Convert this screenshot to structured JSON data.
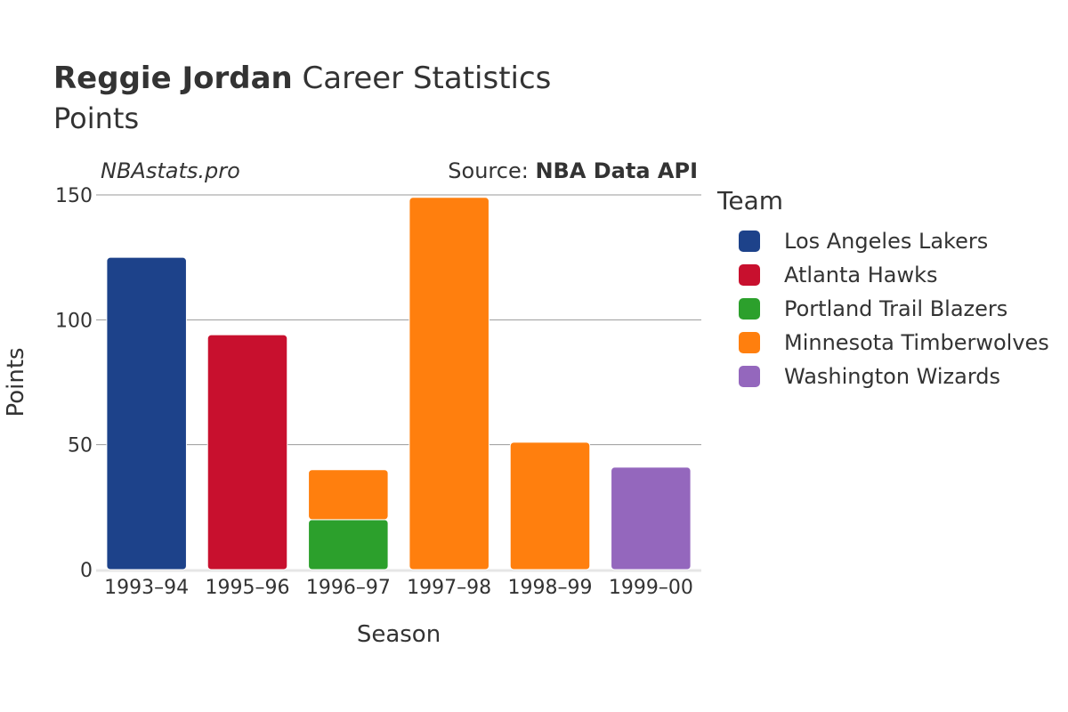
{
  "header": {
    "title_bold": "Reggie Jordan",
    "title_rest": " Career Statistics",
    "subtitle": "Points",
    "site": "NBAstats.pro",
    "source_prefix": "Source: ",
    "source_name": "NBA Data API"
  },
  "chart_data": {
    "type": "bar",
    "stacked": true,
    "categories": [
      "1993–94",
      "1995–96",
      "1996–97",
      "1997–98",
      "1998–99",
      "1999–00"
    ],
    "xlabel": "Season",
    "ylabel": "Points",
    "ylim": [
      0,
      150
    ],
    "yticks": [
      0,
      50,
      100,
      150
    ],
    "grid": true,
    "legend_title": "Team",
    "legend_position": "right",
    "series": [
      {
        "name": "Los Angeles Lakers",
        "color": "#1d428a",
        "values": [
          125,
          0,
          0,
          0,
          0,
          0
        ]
      },
      {
        "name": "Atlanta Hawks",
        "color": "#c8102e",
        "values": [
          0,
          94,
          0,
          0,
          0,
          0
        ]
      },
      {
        "name": "Portland Trail Blazers",
        "color": "#2ca02c",
        "values": [
          0,
          0,
          20,
          0,
          0,
          0
        ]
      },
      {
        "name": "Minnesota Timberwolves",
        "color": "#ff7f0e",
        "values": [
          0,
          0,
          20,
          149,
          51,
          0
        ]
      },
      {
        "name": "Washington Wizards",
        "color": "#9467bd",
        "values": [
          0,
          0,
          0,
          0,
          0,
          41
        ]
      }
    ]
  }
}
